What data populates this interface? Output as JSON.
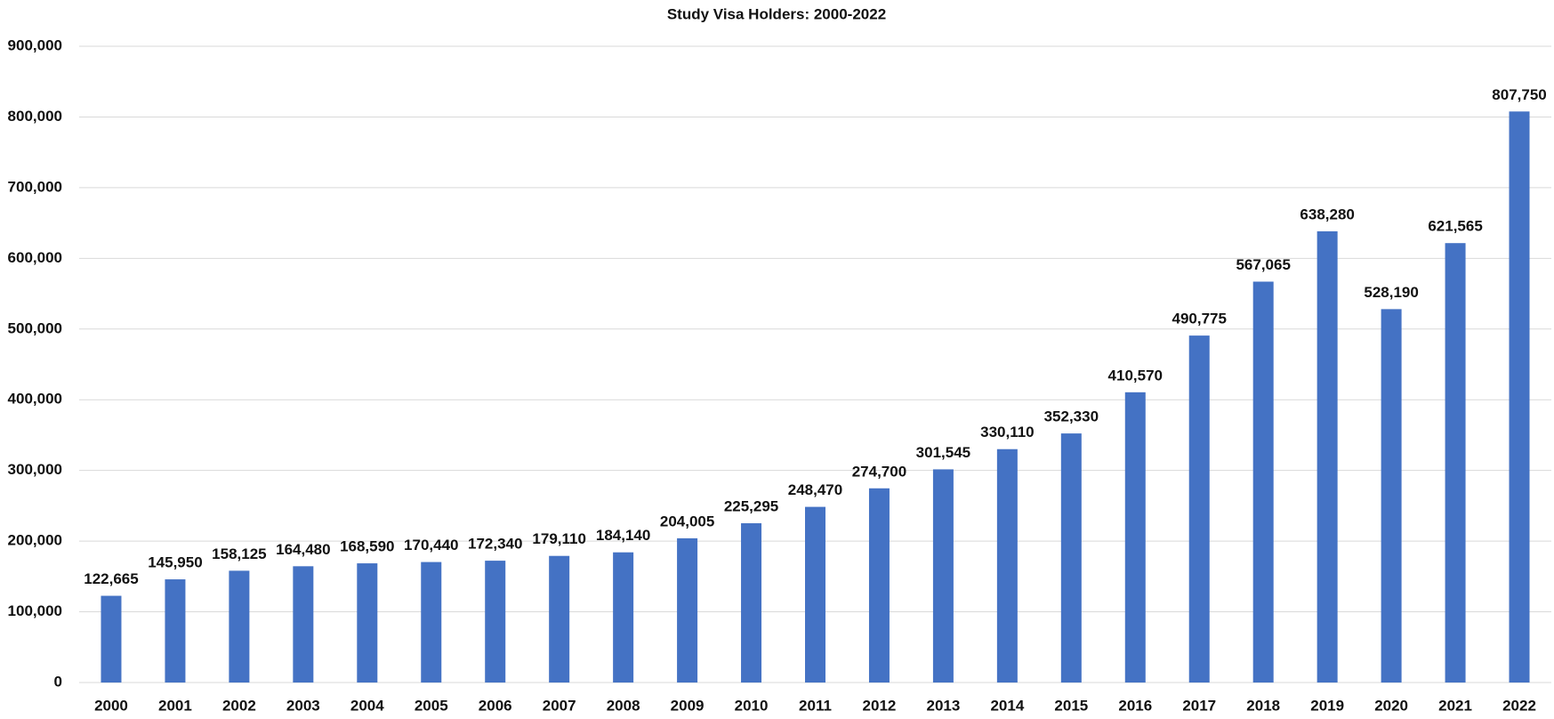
{
  "chart_data": {
    "type": "bar",
    "title": "Study Visa Holders: 2000-2022",
    "categories": [
      "2000",
      "2001",
      "2002",
      "2003",
      "2004",
      "2005",
      "2006",
      "2007",
      "2008",
      "2009",
      "2010",
      "2011",
      "2012",
      "2013",
      "2014",
      "2015",
      "2016",
      "2017",
      "2018",
      "2019",
      "2020",
      "2021",
      "2022"
    ],
    "values": [
      122665,
      145950,
      158125,
      164480,
      168590,
      170440,
      172340,
      179110,
      184140,
      204005,
      225295,
      248470,
      274700,
      301545,
      330110,
      352330,
      410570,
      490775,
      567065,
      638280,
      528190,
      621565,
      807750
    ],
    "value_labels": [
      "122,665",
      "145,950",
      "158,125",
      "164,480",
      "168,590",
      "170,440",
      "172,340",
      "179,110",
      "184,140",
      "204,005",
      "225,295",
      "248,470",
      "274,700",
      "301,545",
      "330,110",
      "352,330",
      "410,570",
      "490,775",
      "567,065",
      "638,280",
      "528,190",
      "621,565",
      "807,750"
    ],
    "color": "#4472c4",
    "ylim": [
      0,
      900000
    ],
    "yticks": [
      0,
      {
        "value": 100000,
        "label": "100,000"
      },
      {
        "value": 200000,
        "label": "200,000"
      },
      {
        "value": 300000,
        "label": "300,000"
      },
      {
        "value": 400000,
        "label": "400,000"
      },
      {
        "value": 500000,
        "label": "500,000"
      },
      {
        "value": 600000,
        "label": "600,000"
      },
      {
        "value": 700000,
        "label": "700,000"
      },
      {
        "value": 800000,
        "label": "800,000"
      },
      {
        "value": 900000,
        "label": "900,000"
      }
    ],
    "grid": true
  }
}
